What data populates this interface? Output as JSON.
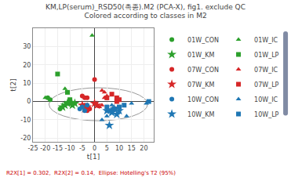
{
  "chart_data": {
    "type": "scatter",
    "title": "KM,LP(serum)_RSD50(촉종).M2 (PCA-X), fig1. exclude QC",
    "subtitle": "Colored according to classes in M2",
    "xlabel": "t[1]",
    "ylabel": "t[2]",
    "footnote": "R2X[1] = 0.302,  R2X[2] = 0.14,  Ellipse: Hotelling's T2 (95%)",
    "xlim": [
      -25,
      24
    ],
    "ylim": [
      -22,
      40
    ],
    "xticks": [
      -25,
      -20,
      -15,
      -10,
      -5,
      0,
      5,
      10,
      15,
      20
    ],
    "yticks": [
      -20,
      -10,
      0,
      10,
      20,
      30
    ],
    "grid": true,
    "legend": "right",
    "ellipse": {
      "cx": 1.5,
      "cy": -1.5,
      "width": 40,
      "height": 18
    },
    "series": [
      {
        "name": "01W_CON",
        "color": "#2ca02c",
        "marker": "circle",
        "x": [
          -19,
          -18,
          -14
        ],
        "y": [
          2,
          1,
          -4
        ]
      },
      {
        "name": "01W_IC",
        "color": "#2ca02c",
        "marker": "triangle-up",
        "x": [
          -20,
          -12,
          -1,
          -10
        ],
        "y": [
          2,
          7,
          36,
          -1
        ]
      },
      {
        "name": "01W_KM",
        "color": "#2ca02c",
        "marker": "star",
        "x": [
          -11,
          -8,
          -12,
          -13,
          -9
        ],
        "y": [
          -1,
          -1,
          -2,
          -3,
          -2
        ]
      },
      {
        "name": "01W_LP",
        "color": "#2ca02c",
        "marker": "square",
        "x": [
          -15,
          -11,
          -10,
          -11,
          -9,
          -10
        ],
        "y": [
          15,
          5,
          1,
          -1,
          -1,
          0
        ]
      },
      {
        "name": "07W_CON",
        "color": "#d62728",
        "marker": "circle",
        "x": [
          -5,
          -4,
          -4,
          -3,
          0,
          -3,
          -2
        ],
        "y": [
          3,
          2,
          -2,
          2,
          12,
          -5,
          -4
        ]
      },
      {
        "name": "07W_IC",
        "color": "#d62728",
        "marker": "triangle-up",
        "x": [
          3,
          4,
          2,
          3,
          5,
          4
        ],
        "y": [
          6,
          5,
          -3,
          -2,
          3,
          2
        ]
      },
      {
        "name": "07W_KM",
        "color": "#d62728",
        "marker": "star",
        "x": [
          -5,
          -3,
          -4,
          0,
          1
        ],
        "y": [
          -2,
          -3,
          -4,
          -1,
          -2
        ]
      },
      {
        "name": "07W_LP",
        "color": "#d62728",
        "marker": "square",
        "x": [
          5,
          7,
          9,
          8,
          10,
          9
        ],
        "y": [
          2,
          4,
          2,
          -4,
          1,
          0
        ]
      },
      {
        "name": "10W_CON",
        "color": "#1f77b4",
        "marker": "circle",
        "x": [
          -4,
          -5,
          -3,
          -6
        ],
        "y": [
          -5,
          -3,
          -2,
          -4
        ]
      },
      {
        "name": "10W_IC",
        "color": "#1f77b4",
        "marker": "triangle-up",
        "x": [
          15,
          13,
          21,
          7,
          3,
          5
        ],
        "y": [
          -1,
          -8,
          -1,
          -2,
          -10,
          -8
        ]
      },
      {
        "name": "10W_KM",
        "color": "#1f77b4",
        "marker": "star",
        "x": [
          5,
          7,
          6,
          8,
          10,
          9
        ],
        "y": [
          -5,
          -6,
          -13,
          -4,
          -5,
          -7
        ]
      },
      {
        "name": "10W_LP",
        "color": "#1f77b4",
        "marker": "square",
        "x": [
          22,
          5,
          8,
          6,
          10,
          12
        ],
        "y": [
          0,
          -3,
          -4,
          -5,
          -3,
          -2
        ]
      }
    ]
  }
}
